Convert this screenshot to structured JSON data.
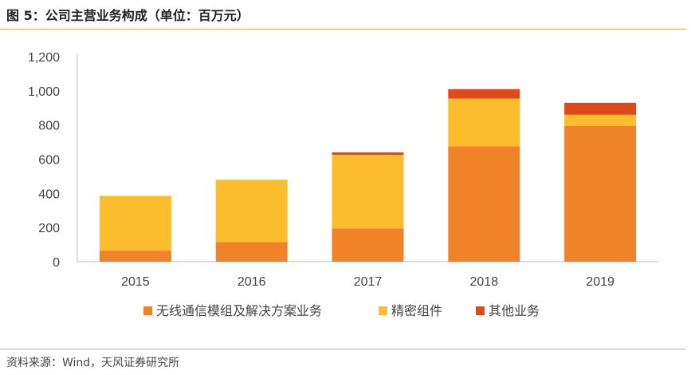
{
  "header": {
    "title": "图 5：公司主营业务构成（单位：百万元）"
  },
  "footer": {
    "source": "资料来源：Wind，天风证券研究所"
  },
  "chart_data": {
    "type": "bar",
    "stacked": true,
    "title": "图 5：公司主营业务构成（单位：百万元）",
    "xlabel": "",
    "ylabel": "",
    "categories": [
      "2015",
      "2016",
      "2017",
      "2018",
      "2019"
    ],
    "ylim": [
      0,
      1200
    ],
    "yticks": [
      0,
      200,
      400,
      600,
      800,
      1000,
      1200
    ],
    "ytick_labels": [
      "0",
      "200",
      "400",
      "600",
      "800",
      "1,000",
      "1,200"
    ],
    "grid": false,
    "legend_position": "bottom",
    "series": [
      {
        "name": "无线通信模组及解决方案业务",
        "color": "#f0832a",
        "values": [
          65,
          115,
          195,
          675,
          795
        ]
      },
      {
        "name": "精密组件",
        "color": "#fbbc2e",
        "values": [
          320,
          365,
          430,
          280,
          65
        ]
      },
      {
        "name": "其他业务",
        "color": "#df4a1c",
        "values": [
          0,
          0,
          15,
          55,
          70
        ]
      }
    ]
  }
}
